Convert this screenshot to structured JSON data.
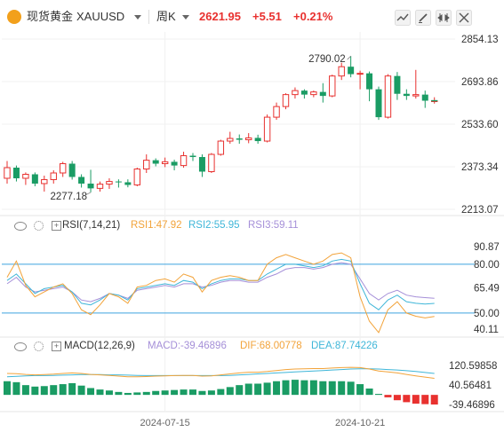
{
  "header": {
    "instrument_name": "现货黄金",
    "symbol": "XAUUSD",
    "period": "周K",
    "price": "2621.95",
    "change": "+5.51",
    "change_pct": "+0.21%",
    "colors": {
      "up": "#e8312f",
      "down": "#1a9c64",
      "brand": "#f2a01b"
    },
    "icons": [
      "candlestick-icon",
      "edit-icon",
      "compare-icon",
      "fullscreen-icon"
    ]
  },
  "rsi_panel": {
    "label": "RSI(7,14,21)",
    "rsi1": "RSI1:47.92",
    "rsi2": "RSI2:55.95",
    "rsi3": "RSI3:59.11",
    "ticks": [
      "90.87",
      "80.00",
      "65.49",
      "50.00",
      "40.11"
    ]
  },
  "macd_panel": {
    "label": "MACD(12,26,9)",
    "macd": "MACD:-39.46896",
    "dif": "DIF:68.00778",
    "dea": "DEA:87.74226",
    "ticks": [
      "120.59858",
      "40.56481",
      "-39.46896"
    ]
  },
  "chart_data": {
    "type": "candlestick",
    "x_labels": [
      "2024-07-15",
      "2024-10-21"
    ],
    "y_ticks": [
      "2854.13",
      "2693.86",
      "2533.60",
      "2373.34",
      "2213.07"
    ],
    "ylim": [
      2213.07,
      2854.13
    ],
    "annotations": {
      "high": "2790.02",
      "low": "2277.18"
    },
    "ohlc": [
      [
        2330,
        2395,
        2310,
        2370
      ],
      [
        2370,
        2378,
        2318,
        2330
      ],
      [
        2330,
        2352,
        2305,
        2345
      ],
      [
        2345,
        2352,
        2300,
        2310
      ],
      [
        2310,
        2340,
        2280,
        2325
      ],
      [
        2325,
        2360,
        2310,
        2350
      ],
      [
        2350,
        2392,
        2335,
        2385
      ],
      [
        2385,
        2395,
        2325,
        2335
      ],
      [
        2335,
        2345,
        2295,
        2310
      ],
      [
        2310,
        2362,
        2277,
        2292
      ],
      [
        2292,
        2318,
        2280,
        2308
      ],
      [
        2308,
        2330,
        2290,
        2318
      ],
      [
        2318,
        2326,
        2295,
        2315
      ],
      [
        2315,
        2326,
        2296,
        2305
      ],
      [
        2305,
        2370,
        2300,
        2365
      ],
      [
        2365,
        2420,
        2350,
        2398
      ],
      [
        2398,
        2405,
        2375,
        2385
      ],
      [
        2385,
        2408,
        2372,
        2392
      ],
      [
        2392,
        2400,
        2360,
        2378
      ],
      [
        2378,
        2430,
        2370,
        2415
      ],
      [
        2415,
        2425,
        2395,
        2410
      ],
      [
        2410,
        2420,
        2335,
        2355
      ],
      [
        2355,
        2425,
        2350,
        2420
      ],
      [
        2420,
        2475,
        2415,
        2470
      ],
      [
        2470,
        2505,
        2460,
        2480
      ],
      [
        2480,
        2495,
        2460,
        2475
      ],
      [
        2475,
        2500,
        2462,
        2482
      ],
      [
        2482,
        2494,
        2460,
        2470
      ],
      [
        2470,
        2570,
        2465,
        2560
      ],
      [
        2560,
        2615,
        2550,
        2600
      ],
      [
        2600,
        2650,
        2590,
        2645
      ],
      [
        2645,
        2672,
        2630,
        2660
      ],
      [
        2660,
        2665,
        2630,
        2645
      ],
      [
        2645,
        2660,
        2635,
        2655
      ],
      [
        2655,
        2688,
        2615,
        2640
      ],
      [
        2640,
        2720,
        2635,
        2715
      ],
      [
        2715,
        2765,
        2700,
        2750
      ],
      [
        2750,
        2790,
        2710,
        2722
      ],
      [
        2722,
        2735,
        2665,
        2725
      ],
      [
        2725,
        2732,
        2620,
        2665
      ],
      [
        2665,
        2675,
        2550,
        2560
      ],
      [
        2560,
        2722,
        2555,
        2715
      ],
      [
        2715,
        2730,
        2625,
        2648
      ],
      [
        2648,
        2665,
        2625,
        2640
      ],
      [
        2640,
        2738,
        2630,
        2645
      ],
      [
        2645,
        2660,
        2595,
        2622
      ],
      [
        2622,
        2635,
        2611,
        2622
      ]
    ],
    "rsi_lines": {
      "range": [
        40.11,
        90.87
      ],
      "rsi1": [
        72,
        82,
        67,
        60,
        63,
        66,
        68,
        62,
        52,
        49,
        55,
        62,
        60,
        56,
        66,
        67,
        70,
        71,
        69,
        74,
        72,
        63,
        70,
        72,
        73,
        72,
        70,
        70,
        80,
        84,
        86,
        84,
        82,
        80,
        82,
        86,
        87,
        84,
        60,
        45,
        38,
        52,
        57,
        50,
        48,
        47,
        47.92
      ],
      "rsi2": [
        70,
        74,
        68,
        62,
        65,
        66,
        67,
        63,
        56,
        55,
        58,
        62,
        61,
        58,
        65,
        66,
        67,
        68,
        67,
        70,
        69,
        65,
        68,
        70,
        71,
        71,
        70,
        70,
        74,
        77,
        80,
        80,
        79,
        78,
        79,
        82,
        83,
        82,
        68,
        56,
        52,
        58,
        61,
        57,
        56,
        55.5,
        55.95
      ],
      "rsi3": [
        68,
        72,
        66,
        63,
        64,
        65,
        66,
        63,
        58,
        57,
        59,
        62,
        61,
        59,
        64,
        65,
        66,
        67,
        66,
        68,
        68,
        66,
        67,
        69,
        70,
        70,
        69,
        69,
        72,
        74,
        77,
        78,
        78,
        77,
        78,
        80,
        81,
        80,
        71,
        62,
        58,
        62,
        64,
        61,
        60,
        59.5,
        59.11
      ]
    },
    "macd_lines": {
      "range": [
        -39.46896,
        120.59858
      ],
      "dif": [
        88,
        87,
        84,
        82,
        83,
        85,
        88,
        90,
        88,
        84,
        82,
        80,
        77,
        74,
        74,
        75,
        77,
        78,
        79,
        80,
        80,
        77,
        78,
        82,
        86,
        90,
        93,
        93,
        96,
        100,
        104,
        106,
        107,
        108,
        108,
        110,
        112,
        113,
        112,
        106,
        98,
        94,
        90,
        84,
        78,
        73,
        68
      ],
      "dea": [
        74,
        76,
        78,
        79,
        79,
        80,
        81,
        82,
        83,
        83,
        83,
        82,
        82,
        81,
        80,
        79,
        79,
        79,
        79,
        79,
        79,
        79,
        79,
        79,
        80,
        82,
        84,
        86,
        88,
        90,
        92,
        94,
        96,
        98,
        100,
        102,
        104,
        106,
        107,
        107,
        106,
        104,
        102,
        99,
        96,
        92,
        88
      ],
      "hist": [
        56,
        52,
        40,
        34,
        36,
        40,
        44,
        48,
        38,
        28,
        22,
        18,
        12,
        8,
        10,
        12,
        16,
        18,
        20,
        22,
        22,
        16,
        18,
        24,
        32,
        40,
        46,
        46,
        50,
        56,
        60,
        62,
        60,
        60,
        56,
        56,
        56,
        54,
        44,
        26,
        4,
        -10,
        -22,
        -30,
        -36,
        -38,
        -39.47
      ]
    }
  }
}
